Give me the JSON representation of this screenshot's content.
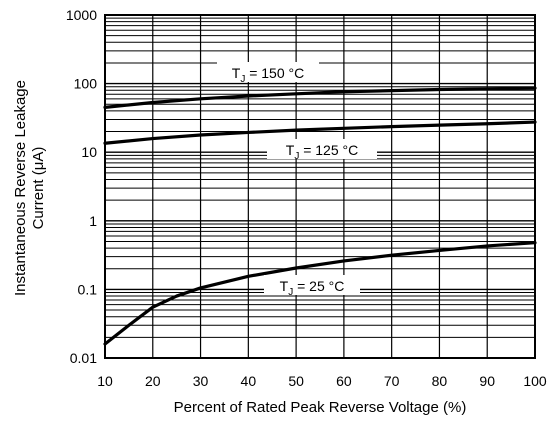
{
  "chart_data": {
    "type": "line",
    "xlabel": "Percent of Rated Peak Reverse Voltage (%)",
    "ylabel_line1": "Instantaneous Reverse Leakage",
    "ylabel_line2": "Current (μA)",
    "xlim": [
      10,
      100
    ],
    "ylim": [
      0.01,
      1000
    ],
    "yscale": "log",
    "grid": true,
    "x_ticks": [
      10,
      20,
      30,
      40,
      50,
      60,
      70,
      80,
      90,
      100
    ],
    "x_tick_labels": [
      "10",
      "20",
      "30",
      "40",
      "50",
      "60",
      "70",
      "80",
      "90",
      "100"
    ],
    "y_ticks": [
      0.01,
      0.1,
      1,
      10,
      100,
      1000
    ],
    "y_tick_labels": [
      "0.01",
      "0.1",
      "1",
      "10",
      "100",
      "1000"
    ],
    "series": [
      {
        "name": "TJ = 150 °C",
        "label_prefix": "T",
        "label_sub": "J",
        "label_suffix": " = 150 °C",
        "x": [
          10,
          20,
          30,
          40,
          50,
          60,
          70,
          80,
          90,
          100
        ],
        "y": [
          45,
          53,
          60,
          66,
          71,
          76,
          79,
          82,
          84,
          86
        ]
      },
      {
        "name": "TJ = 125 °C",
        "label_prefix": "T",
        "label_sub": "J",
        "label_suffix": " = 125 °C",
        "x": [
          10,
          20,
          30,
          40,
          50,
          60,
          70,
          80,
          90,
          100
        ],
        "y": [
          13.5,
          15.8,
          17.8,
          19.4,
          21,
          22.3,
          23.6,
          24.8,
          26,
          27.5
        ]
      },
      {
        "name": "TJ = 25 °C",
        "label_prefix": "T",
        "label_sub": "J",
        "label_suffix": " = 25 °C",
        "x": [
          10,
          15,
          20,
          25,
          30,
          40,
          50,
          60,
          70,
          80,
          90,
          100
        ],
        "y": [
          0.016,
          0.03,
          0.055,
          0.08,
          0.105,
          0.155,
          0.205,
          0.26,
          0.315,
          0.37,
          0.43,
          0.48
        ]
      }
    ]
  }
}
